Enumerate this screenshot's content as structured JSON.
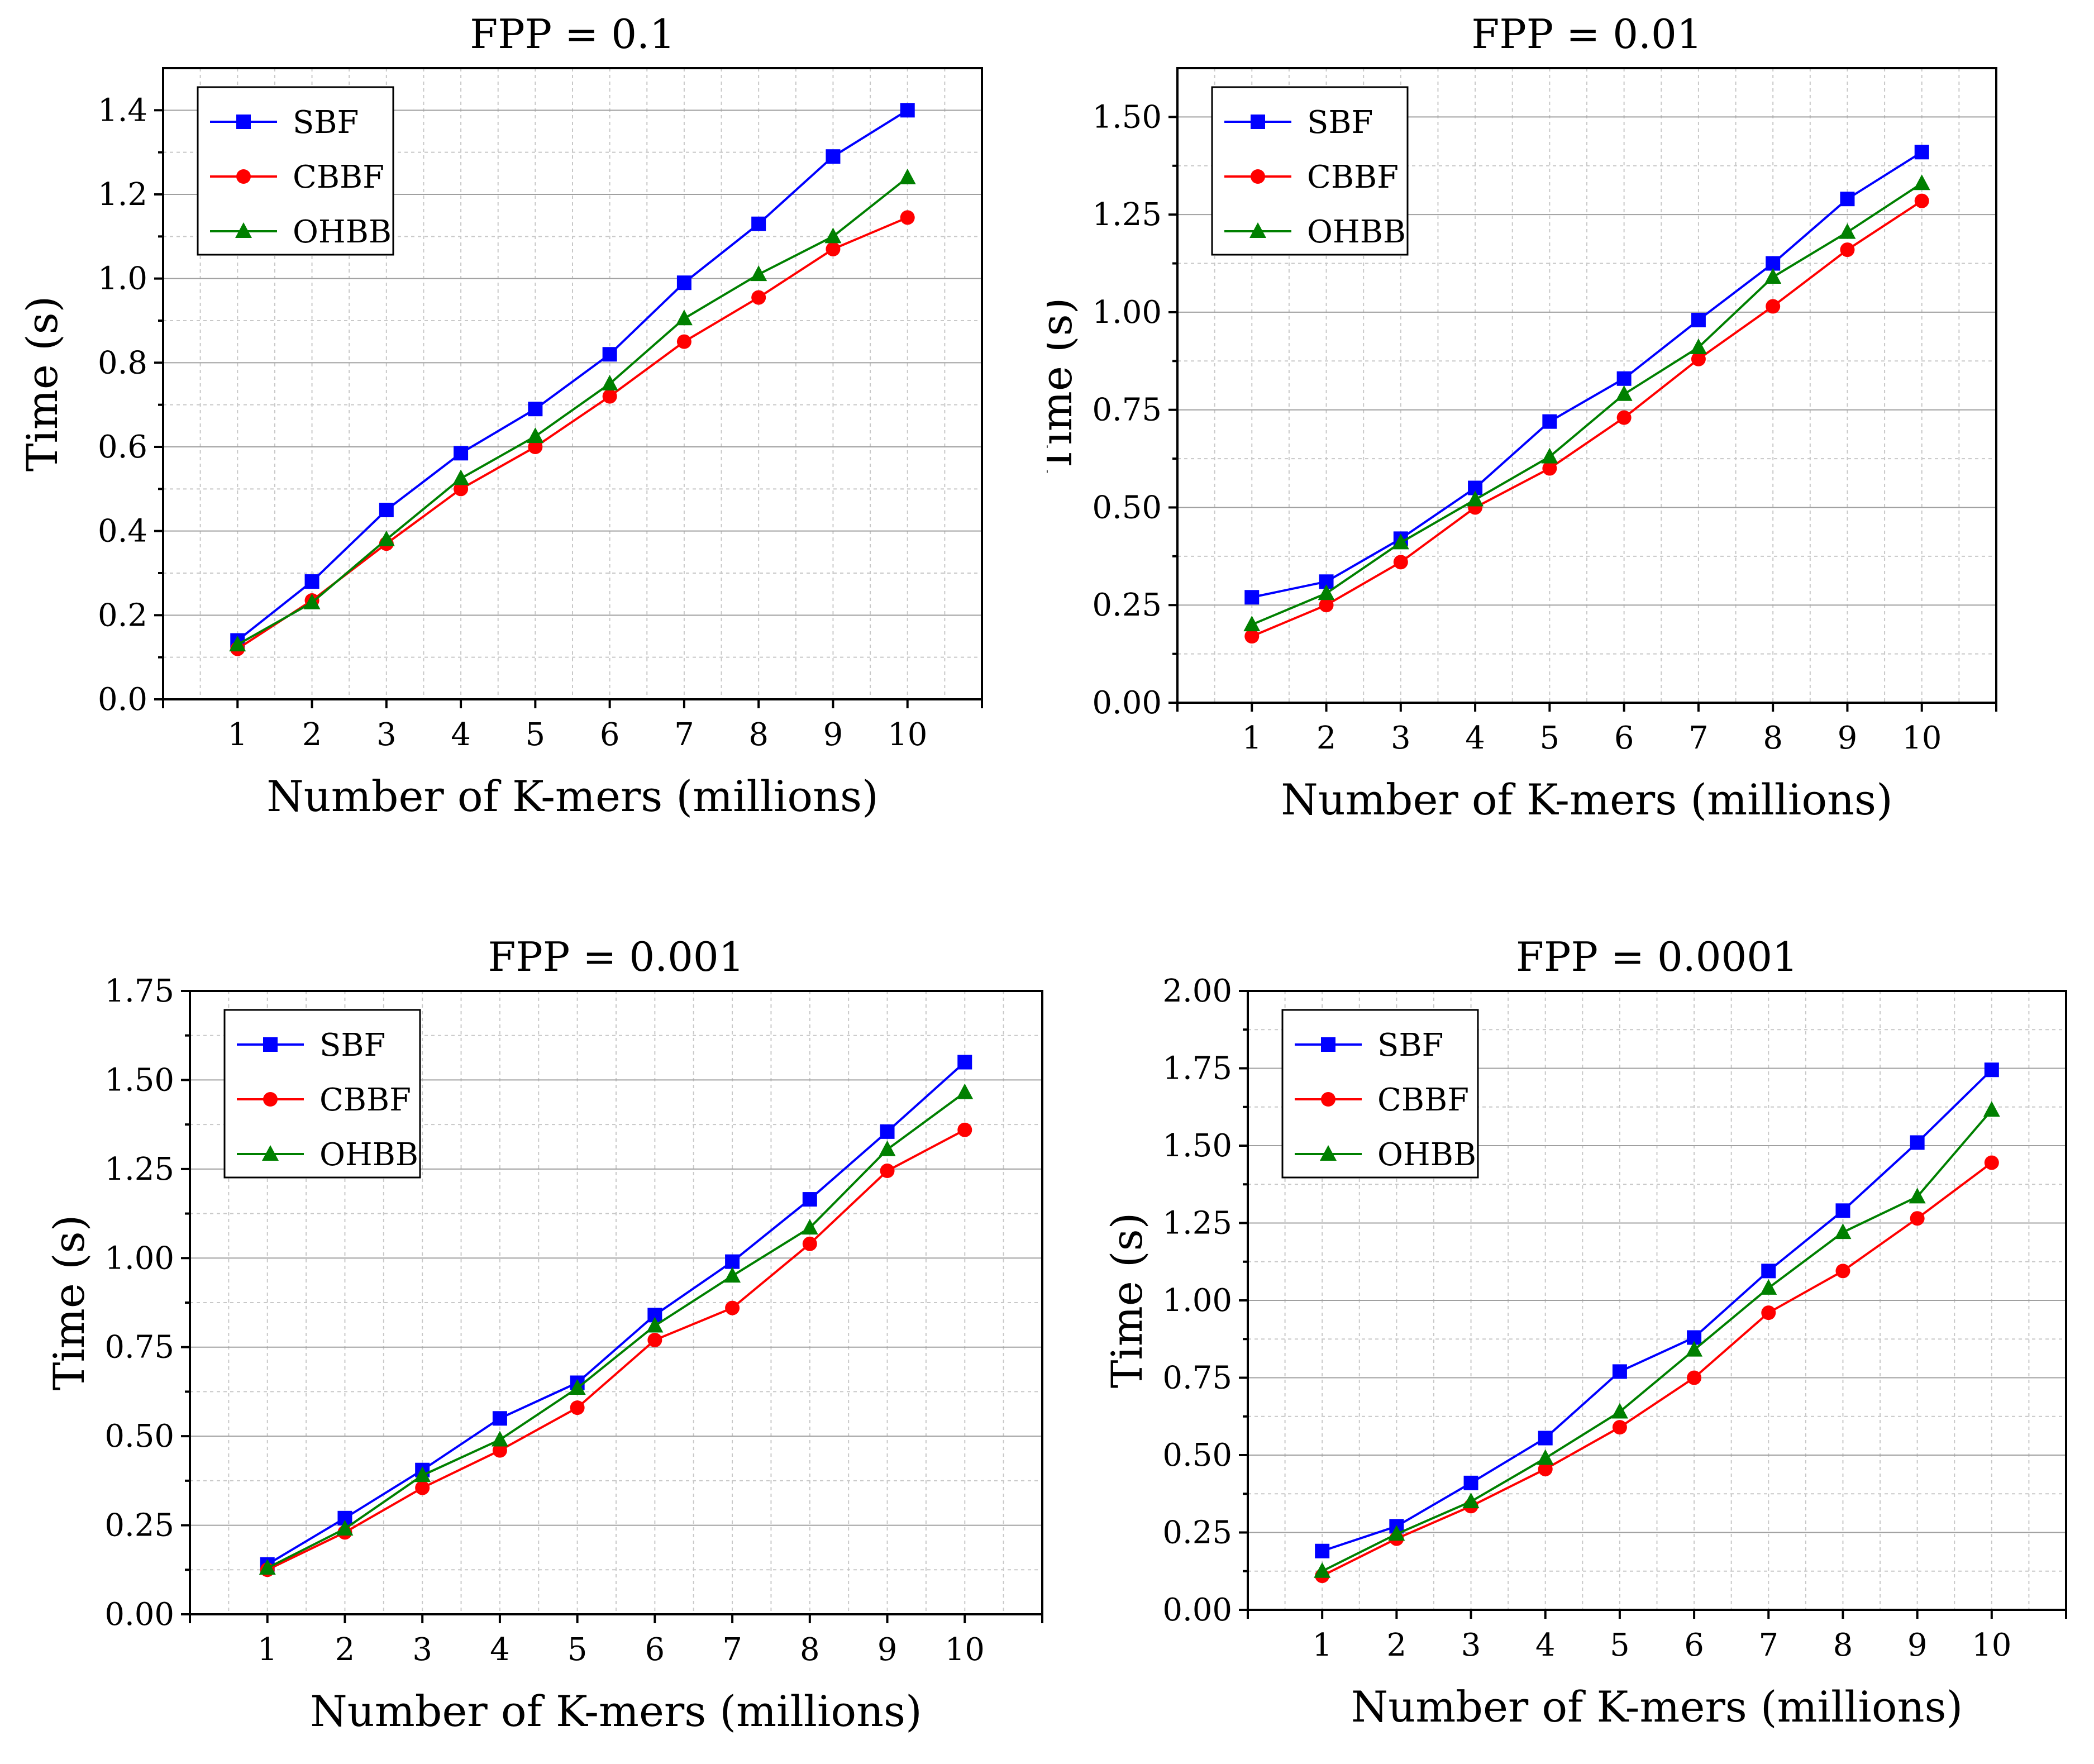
{
  "chart_data": [
    {
      "type": "line",
      "title": "FPP = 0.1",
      "xlabel": "Number of K-mers (millions)",
      "ylabel": "Time (s)",
      "x": [
        1,
        2,
        3,
        4,
        5,
        6,
        7,
        8,
        9,
        10
      ],
      "xlim": [
        0,
        11
      ],
      "ylim": [
        0,
        1.5
      ],
      "yticks": [
        0.0,
        0.2,
        0.4,
        0.6,
        0.8,
        1.0,
        1.2,
        1.4
      ],
      "ytick_labels": [
        "0.0",
        "0.2",
        "0.4",
        "0.6",
        "0.8",
        "1.0",
        "1.2",
        "1.4"
      ],
      "legend_position": "top-left",
      "grid": true,
      "series": [
        {
          "name": "SBF",
          "color": "#0000ff",
          "marker": "square",
          "values": [
            0.14,
            0.28,
            0.45,
            0.585,
            0.69,
            0.82,
            0.99,
            1.13,
            1.29,
            1.4
          ]
        },
        {
          "name": "CBBF",
          "color": "#ff0000",
          "marker": "circle",
          "values": [
            0.12,
            0.235,
            0.37,
            0.5,
            0.6,
            0.72,
            0.85,
            0.955,
            1.07,
            1.145
          ]
        },
        {
          "name": "OHBB",
          "color": "#008000",
          "marker": "triangle",
          "values": [
            0.13,
            0.23,
            0.38,
            0.525,
            0.625,
            0.75,
            0.905,
            1.01,
            1.1,
            1.24
          ]
        }
      ]
    },
    {
      "type": "line",
      "title": "FPP = 0.01",
      "xlabel": "Number of K-mers (millions)",
      "ylabel": "Time (s)",
      "x": [
        1,
        2,
        3,
        4,
        5,
        6,
        7,
        8,
        9,
        10
      ],
      "xlim": [
        0,
        11
      ],
      "ylim": [
        0,
        1.625
      ],
      "yticks": [
        0.0,
        0.25,
        0.5,
        0.75,
        1.0,
        1.25,
        1.5
      ],
      "ytick_labels": [
        "0.00",
        "0.25",
        "0.50",
        "0.75",
        "1.00",
        "1.25",
        "1.50"
      ],
      "legend_position": "top-left",
      "grid": true,
      "series": [
        {
          "name": "SBF",
          "color": "#0000ff",
          "marker": "square",
          "values": [
            0.27,
            0.31,
            0.42,
            0.55,
            0.72,
            0.83,
            0.98,
            1.125,
            1.29,
            1.41
          ]
        },
        {
          "name": "CBBF",
          "color": "#ff0000",
          "marker": "circle",
          "values": [
            0.17,
            0.25,
            0.36,
            0.5,
            0.6,
            0.73,
            0.88,
            1.015,
            1.16,
            1.285
          ]
        },
        {
          "name": "OHBB",
          "color": "#008000",
          "marker": "triangle",
          "values": [
            0.2,
            0.28,
            0.41,
            0.52,
            0.63,
            0.79,
            0.91,
            1.09,
            1.205,
            1.33
          ]
        }
      ]
    },
    {
      "type": "line",
      "title": "FPP = 0.001",
      "xlabel": "Number of K-mers (millions)",
      "ylabel": "Time (s)",
      "x": [
        1,
        2,
        3,
        4,
        5,
        6,
        7,
        8,
        9,
        10
      ],
      "xlim": [
        0,
        11
      ],
      "ylim": [
        0,
        1.75
      ],
      "yticks": [
        0.0,
        0.25,
        0.5,
        0.75,
        1.0,
        1.25,
        1.5,
        1.75
      ],
      "ytick_labels": [
        "0.00",
        "0.25",
        "0.50",
        "0.75",
        "1.00",
        "1.25",
        "1.50",
        "1.75"
      ],
      "legend_position": "top-left",
      "grid": true,
      "series": [
        {
          "name": "SBF",
          "color": "#0000ff",
          "marker": "square",
          "values": [
            0.14,
            0.27,
            0.405,
            0.55,
            0.65,
            0.84,
            0.99,
            1.165,
            1.355,
            1.55
          ]
        },
        {
          "name": "CBBF",
          "color": "#ff0000",
          "marker": "circle",
          "values": [
            0.125,
            0.23,
            0.355,
            0.46,
            0.58,
            0.77,
            0.86,
            1.04,
            1.245,
            1.36
          ]
        },
        {
          "name": "OHBB",
          "color": "#008000",
          "marker": "triangle",
          "values": [
            0.13,
            0.24,
            0.39,
            0.49,
            0.635,
            0.81,
            0.95,
            1.085,
            1.305,
            1.465
          ]
        }
      ]
    },
    {
      "type": "line",
      "title": "FPP = 0.0001",
      "xlabel": "Number of K-mers (millions)",
      "ylabel": "Time (s)",
      "x": [
        1,
        2,
        3,
        4,
        5,
        6,
        7,
        8,
        9,
        10
      ],
      "xlim": [
        0,
        11
      ],
      "ylim": [
        0,
        2.0
      ],
      "yticks": [
        0.0,
        0.25,
        0.5,
        0.75,
        1.0,
        1.25,
        1.5,
        1.75,
        2.0
      ],
      "ytick_labels": [
        "0.00",
        "0.25",
        "0.50",
        "0.75",
        "1.00",
        "1.25",
        "1.50",
        "1.75",
        "2.00"
      ],
      "legend_position": "top-left",
      "grid": true,
      "series": [
        {
          "name": "SBF",
          "color": "#0000ff",
          "marker": "square",
          "values": [
            0.19,
            0.27,
            0.41,
            0.555,
            0.77,
            0.88,
            1.095,
            1.29,
            1.51,
            1.745
          ]
        },
        {
          "name": "CBBF",
          "color": "#ff0000",
          "marker": "circle",
          "values": [
            0.11,
            0.23,
            0.335,
            0.455,
            0.59,
            0.75,
            0.96,
            1.095,
            1.265,
            1.445
          ]
        },
        {
          "name": "OHBB",
          "color": "#008000",
          "marker": "triangle",
          "values": [
            0.125,
            0.245,
            0.35,
            0.49,
            0.64,
            0.84,
            1.04,
            1.22,
            1.335,
            1.615
          ]
        }
      ]
    }
  ]
}
